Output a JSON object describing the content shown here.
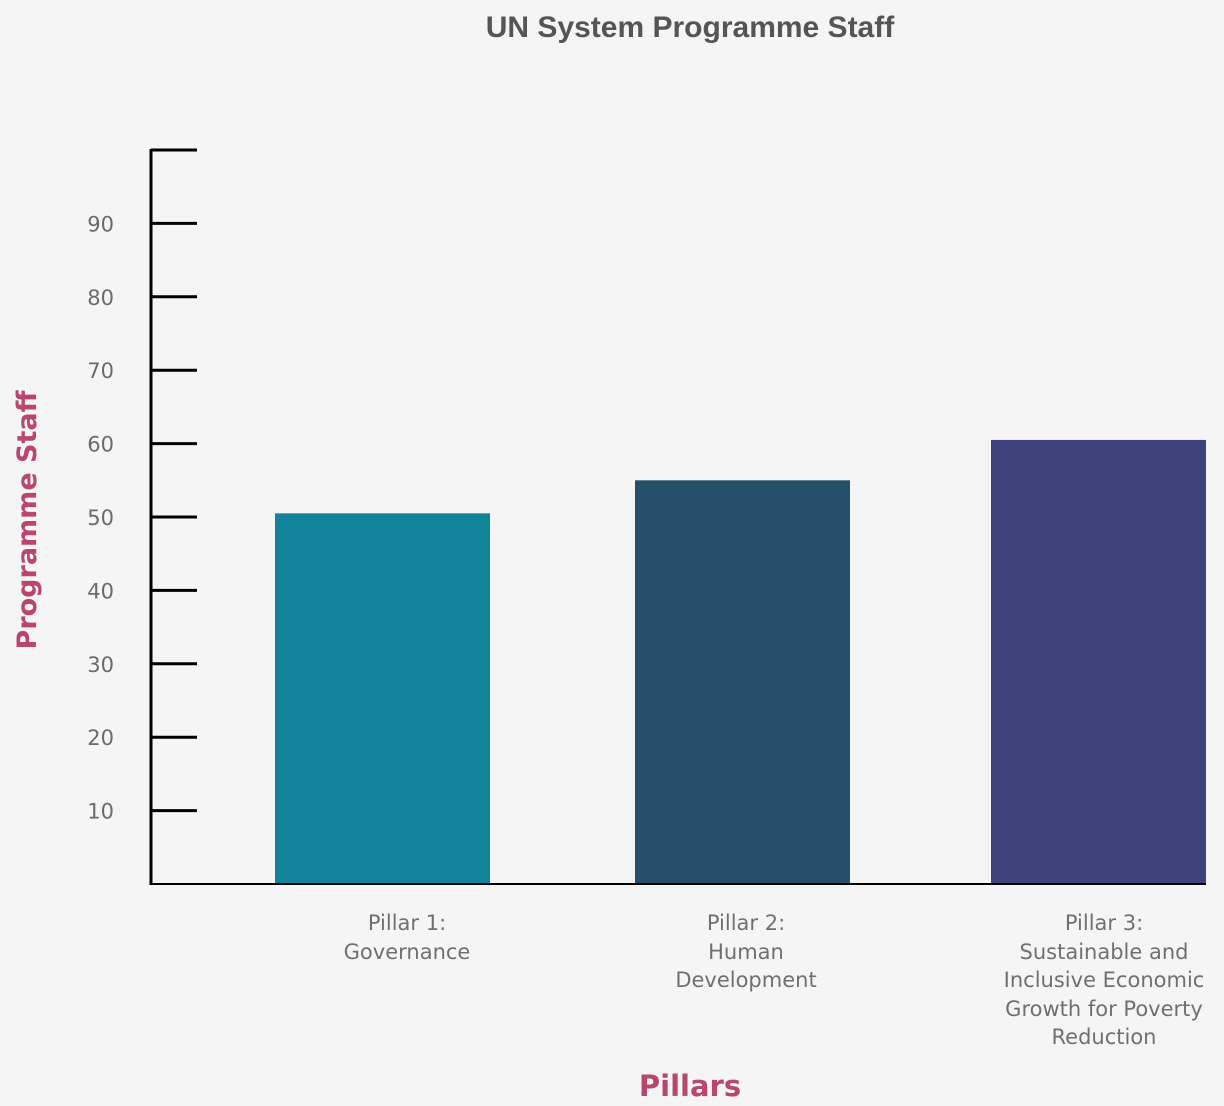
{
  "chart_data": {
    "type": "bar",
    "title": "UN System Programme Staff",
    "xlabel": "Pillars",
    "ylabel": "Programme Staff",
    "categories": [
      "Pillar 1:\nGovernance",
      "Pillar 2:\nHuman\nDevelopment",
      "Pillar 3:\nSustainable and\nInclusive Economic\nGrowth for Poverty\nReduction"
    ],
    "values": [
      50.5,
      55,
      60.5
    ],
    "colors": [
      "#11849c",
      "#264f6c",
      "#3e427c"
    ],
    "yticks": [
      10,
      20,
      30,
      40,
      50,
      60,
      70,
      80,
      90
    ],
    "ylim": [
      0,
      100
    ],
    "grid": false
  }
}
